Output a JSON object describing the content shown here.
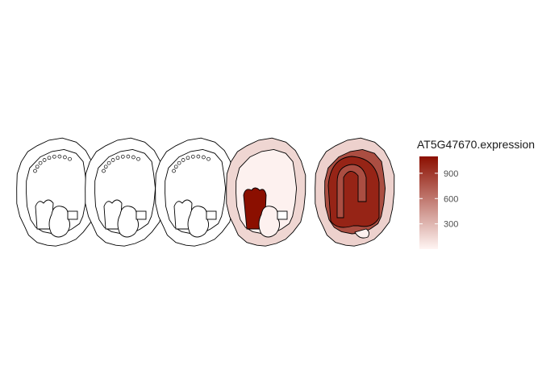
{
  "chart_data": {
    "type": "heatmap",
    "title": "",
    "legend": {
      "title": "AT5G47670.expression",
      "position": "right",
      "ticks": [
        300,
        600,
        900
      ],
      "tick_labels": [
        "300",
        "600",
        "900"
      ],
      "range": [
        0,
        1100
      ],
      "low_color": "#fff5f3",
      "high_color": "#8b0f00"
    },
    "panels": [
      {
        "index": 1,
        "regions": {
          "seed_coat": null,
          "endosperm": null,
          "embryo": null,
          "suspensor": null
        }
      },
      {
        "index": 2,
        "regions": {
          "seed_coat": null,
          "endosperm": null,
          "embryo": null,
          "suspensor": null
        }
      },
      {
        "index": 3,
        "regions": {
          "seed_coat": null,
          "endosperm": null,
          "embryo": null,
          "suspensor": null
        }
      },
      {
        "index": 4,
        "regions": {
          "seed_coat": 150,
          "endosperm": 20,
          "embryo": 1100,
          "suspensor": 20
        }
      },
      {
        "index": 5,
        "regions": {
          "seed_coat": 170,
          "endosperm": 800,
          "embryo": 1000,
          "suspensor": 20
        }
      }
    ],
    "grid": false
  }
}
